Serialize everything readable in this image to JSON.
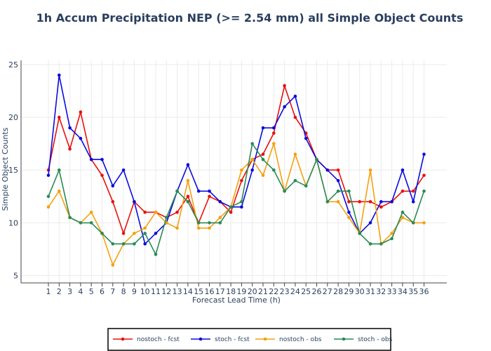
{
  "chart_data": {
    "type": "line",
    "title": "1h Accum Precipitation NEP (>= 2.54 mm) all Simple Object Counts",
    "xlabel": "Forecast Lead Time (h)",
    "ylabel": "Simple Object Counts",
    "ylim": [
      4.3,
      25.4
    ],
    "yticks": [
      5,
      10,
      15,
      20,
      25
    ],
    "grid": true,
    "legend_position": "bottom-center",
    "x": [
      1,
      2,
      3,
      4,
      5,
      6,
      7,
      8,
      9,
      10,
      11,
      12,
      13,
      14,
      15,
      16,
      17,
      18,
      19,
      20,
      21,
      22,
      23,
      24,
      25,
      26,
      27,
      28,
      29,
      30,
      31,
      32,
      33,
      34,
      35,
      36
    ],
    "series": [
      {
        "name": "nostoch - fcst",
        "color": "#e8100d",
        "values": [
          15,
          20,
          17,
          20.5,
          16,
          14.5,
          12,
          9,
          12,
          11,
          11,
          10.5,
          11,
          12.5,
          10,
          12.5,
          12,
          11,
          14,
          16,
          16.5,
          18.5,
          23,
          20,
          18.5,
          16,
          15,
          15,
          12,
          12,
          12,
          11.5,
          12,
          13,
          13,
          14.5
        ]
      },
      {
        "name": "stoch - fcst",
        "color": "#0a0be0",
        "values": [
          14.5,
          24,
          19,
          18,
          16,
          16,
          13.5,
          15,
          12,
          8,
          9,
          10,
          13,
          15.5,
          13,
          13,
          12,
          11.5,
          11.5,
          15,
          19,
          19,
          21,
          22,
          18,
          16,
          15,
          14,
          11,
          9,
          10,
          12,
          12,
          15,
          12,
          16.5
        ]
      },
      {
        "name": "nostoch - obs",
        "color": "#f5a00f",
        "values": [
          11.5,
          13,
          10.5,
          10,
          11,
          9,
          6,
          8,
          9,
          9.5,
          11,
          10,
          9.5,
          14,
          9.5,
          9.5,
          10.5,
          11.5,
          15,
          16,
          14.5,
          17.5,
          13,
          16.5,
          13.5,
          16,
          12,
          12,
          10.5,
          9,
          15,
          8,
          9,
          10.5,
          10,
          10
        ]
      },
      {
        "name": "stoch - obs",
        "color": "#2a8a55",
        "values": [
          12.5,
          15,
          10.5,
          10,
          10,
          9,
          8,
          8,
          8,
          9,
          7,
          10.5,
          13,
          12,
          10,
          10,
          10,
          11.5,
          12,
          17.5,
          16,
          15,
          13,
          14,
          13.5,
          16,
          12,
          13,
          13,
          9,
          8,
          8,
          8.5,
          11,
          10,
          13
        ]
      }
    ]
  }
}
